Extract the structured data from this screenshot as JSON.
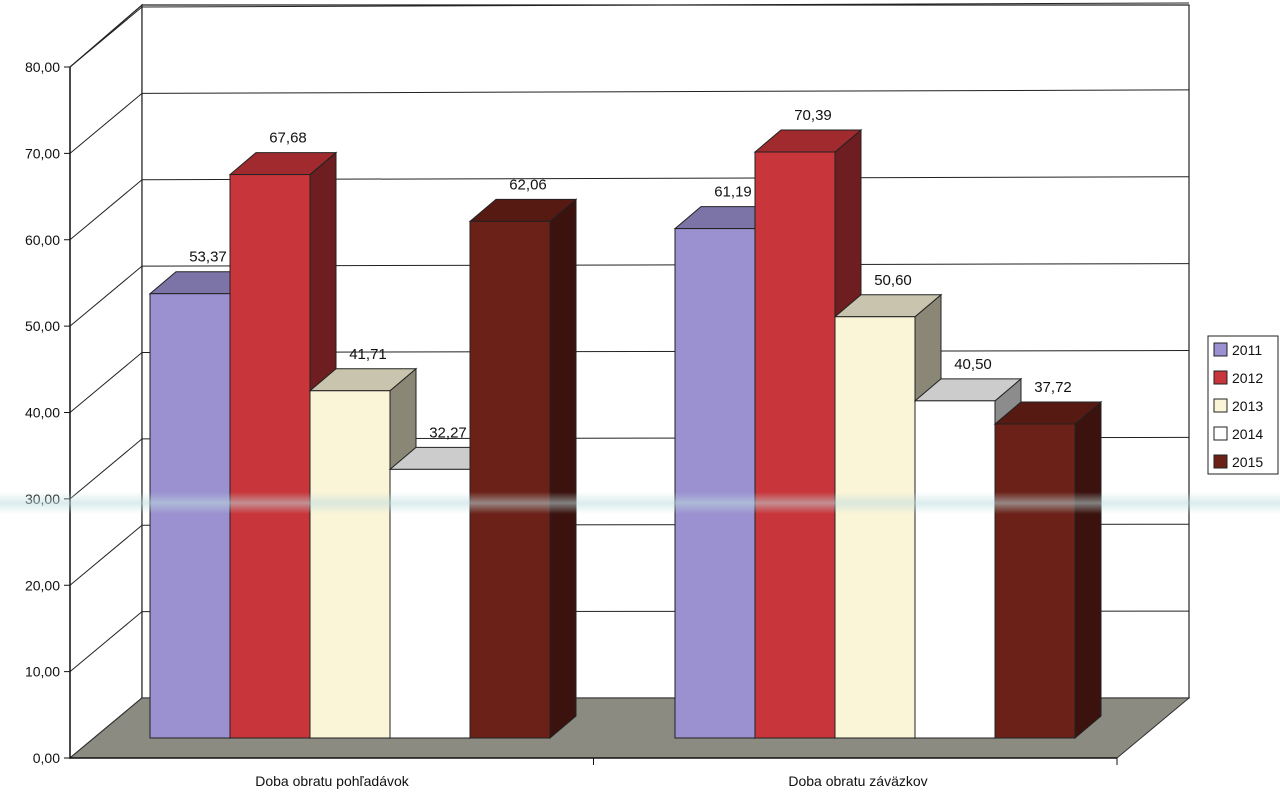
{
  "chart_data": {
    "type": "bar",
    "categories": [
      "Doba obratu pohľadávok",
      "Doba obratu záväzkov"
    ],
    "series": [
      {
        "name": "2011",
        "values": [
          53.37,
          61.19
        ],
        "value_labels": [
          "53,37",
          "61,19"
        ],
        "color": "#9b90d0"
      },
      {
        "name": "2012",
        "values": [
          67.68,
          70.39
        ],
        "value_labels": [
          "67,68",
          "70,39"
        ],
        "color": "#c8353a"
      },
      {
        "name": "2013",
        "values": [
          41.71,
          50.6
        ],
        "value_labels": [
          "41,71",
          "50,60"
        ],
        "color": "#fbf5d8"
      },
      {
        "name": "2014",
        "values": [
          32.27,
          40.5
        ],
        "value_labels": [
          "32,27",
          "40,50"
        ],
        "color": "#ffffff"
      },
      {
        "name": "2015",
        "values": [
          62.06,
          37.72
        ],
        "value_labels": [
          "62,06",
          "37,72"
        ],
        "color": "#6b2118"
      }
    ],
    "y_ticks": [
      "0,00",
      "10,00",
      "20,00",
      "30,00",
      "40,00",
      "50,00",
      "60,00",
      "70,00",
      "80,00"
    ],
    "ylim": [
      0,
      80
    ],
    "grid": true,
    "legend_position": "right",
    "style": "3d-clustered-column",
    "title": "",
    "xlabel": "",
    "ylabel": ""
  }
}
